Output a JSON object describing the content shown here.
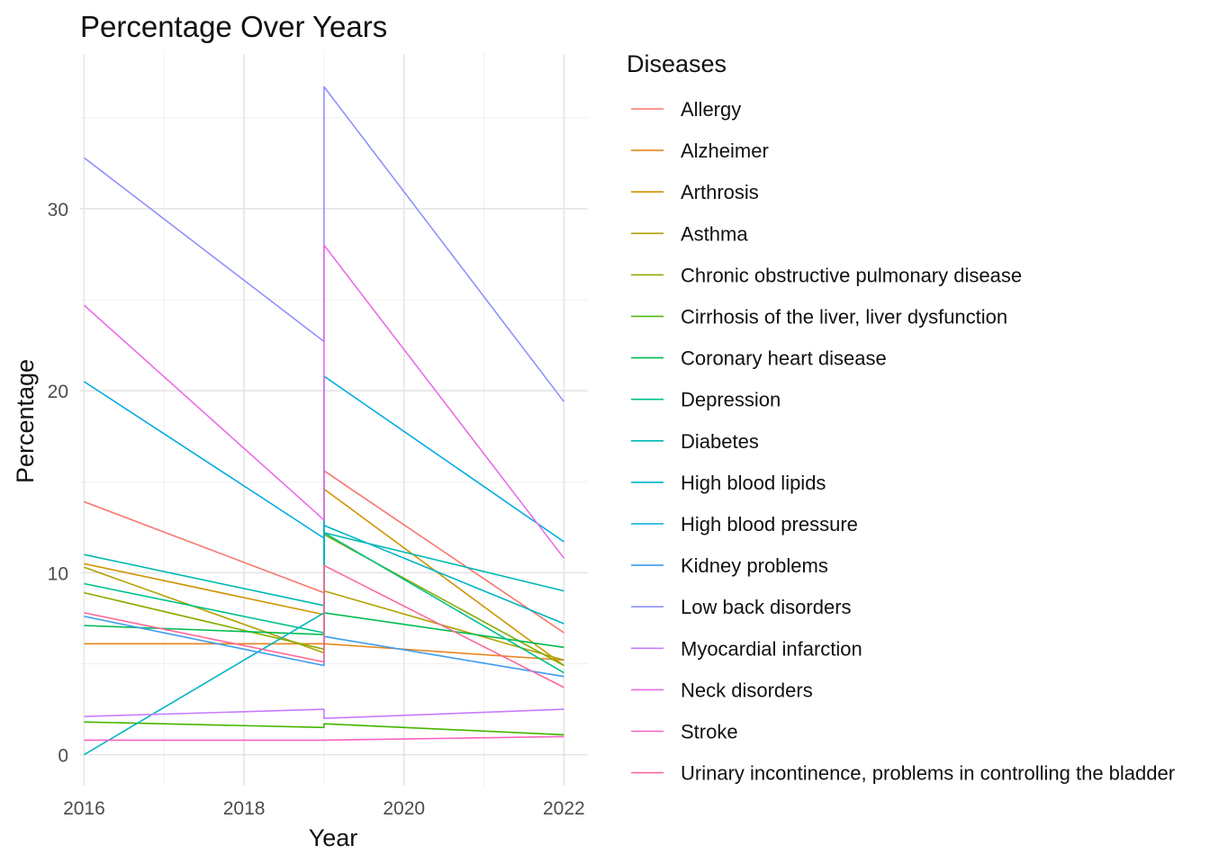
{
  "chart_data": {
    "type": "line",
    "title": "Percentage Over Years",
    "xlabel": "Year",
    "ylabel": "Percentage",
    "xlim": [
      2015.95,
      2022.3
    ],
    "ylim": [
      -1.7,
      38.5
    ],
    "x_ticks": [
      2016,
      2018,
      2020,
      2022
    ],
    "x_minor_ticks": [
      2017,
      2019,
      2021
    ],
    "y_ticks": [
      0,
      10,
      20,
      30
    ],
    "y_minor_ticks": [
      5,
      15,
      25,
      35
    ],
    "grid": true,
    "legend": {
      "title": "Diseases",
      "position": "right"
    },
    "series": [
      {
        "name": "Allergy",
        "color": "#F8766D",
        "points": [
          [
            2016,
            13.9
          ],
          [
            2019,
            8.9
          ],
          [
            2019,
            15.6
          ],
          [
            2022,
            6.7
          ]
        ]
      },
      {
        "name": "Alzheimer",
        "color": "#E7851E",
        "points": [
          [
            2016,
            6.1
          ],
          [
            2019,
            6.1
          ],
          [
            2019,
            6.1
          ],
          [
            2022,
            5.2
          ]
        ]
      },
      {
        "name": "Arthrosis",
        "color": "#D09400",
        "points": [
          [
            2016,
            10.5
          ],
          [
            2019,
            7.7
          ],
          [
            2019,
            14.6
          ],
          [
            2022,
            4.9
          ]
        ]
      },
      {
        "name": "Asthma",
        "color": "#B2A100",
        "points": [
          [
            2016,
            10.3
          ],
          [
            2019,
            5.6
          ],
          [
            2019,
            9.0
          ],
          [
            2022,
            5.2
          ]
        ]
      },
      {
        "name": "Chronic obstructive pulmonary disease",
        "color": "#89AC00",
        "points": [
          [
            2016,
            8.9
          ],
          [
            2019,
            5.8
          ],
          [
            2019,
            12.1
          ],
          [
            2022,
            4.9
          ]
        ]
      },
      {
        "name": "Cirrhosis of the liver, liver dysfunction",
        "color": "#45B500",
        "points": [
          [
            2016,
            1.8
          ],
          [
            2019,
            1.5
          ],
          [
            2019,
            1.7
          ],
          [
            2022,
            1.1
          ]
        ]
      },
      {
        "name": "Coronary heart disease",
        "color": "#00BC51",
        "points": [
          [
            2016,
            7.1
          ],
          [
            2019,
            6.6
          ],
          [
            2019,
            7.8
          ],
          [
            2022,
            5.9
          ]
        ]
      },
      {
        "name": "Depression",
        "color": "#00BF8C",
        "points": [
          [
            2016,
            9.4
          ],
          [
            2019,
            6.7
          ],
          [
            2019,
            12.2
          ],
          [
            2022,
            4.5
          ]
        ]
      },
      {
        "name": "Diabetes",
        "color": "#00B8B1",
        "points": [
          [
            2016,
            11.0
          ],
          [
            2019,
            8.2
          ],
          [
            2019,
            12.2
          ],
          [
            2022,
            9.0
          ]
        ]
      },
      {
        "name": "High blood lipids",
        "color": "#00B4C4",
        "points": [
          [
            2016,
            0.0
          ],
          [
            2019,
            7.8
          ],
          [
            2019,
            12.6
          ],
          [
            2022,
            7.2
          ]
        ]
      },
      {
        "name": "High blood pressure",
        "color": "#00ABE2",
        "points": [
          [
            2016,
            20.5
          ],
          [
            2019,
            11.9
          ],
          [
            2019,
            20.8
          ],
          [
            2022,
            11.7
          ]
        ]
      },
      {
        "name": "Kidney problems",
        "color": "#3C9CF0",
        "points": [
          [
            2016,
            7.6
          ],
          [
            2019,
            4.9
          ],
          [
            2019,
            6.5
          ],
          [
            2022,
            4.3
          ]
        ]
      },
      {
        "name": "Low back disorders",
        "color": "#8F91FF",
        "points": [
          [
            2016,
            32.8
          ],
          [
            2019,
            22.7
          ],
          [
            2019,
            36.7
          ],
          [
            2022,
            19.4
          ]
        ]
      },
      {
        "name": "Myocardial infarction",
        "color": "#C77CFF",
        "points": [
          [
            2016,
            2.1
          ],
          [
            2019,
            2.5
          ],
          [
            2019,
            2.0
          ],
          [
            2022,
            2.5
          ]
        ]
      },
      {
        "name": "Neck disorders",
        "color": "#EA6CE8",
        "points": [
          [
            2016,
            24.7
          ],
          [
            2019,
            12.9
          ],
          [
            2019,
            28.0
          ],
          [
            2022,
            10.8
          ]
        ]
      },
      {
        "name": "Stroke",
        "color": "#FA63C2",
        "points": [
          [
            2016,
            0.8
          ],
          [
            2019,
            0.8
          ],
          [
            2019,
            0.8
          ],
          [
            2022,
            1.0
          ]
        ]
      },
      {
        "name": "Urinary incontinence, problems in controlling the bladder",
        "color": "#FF6699",
        "points": [
          [
            2016,
            7.8
          ],
          [
            2019,
            5.1
          ],
          [
            2019,
            10.4
          ],
          [
            2022,
            3.7
          ]
        ]
      }
    ]
  }
}
